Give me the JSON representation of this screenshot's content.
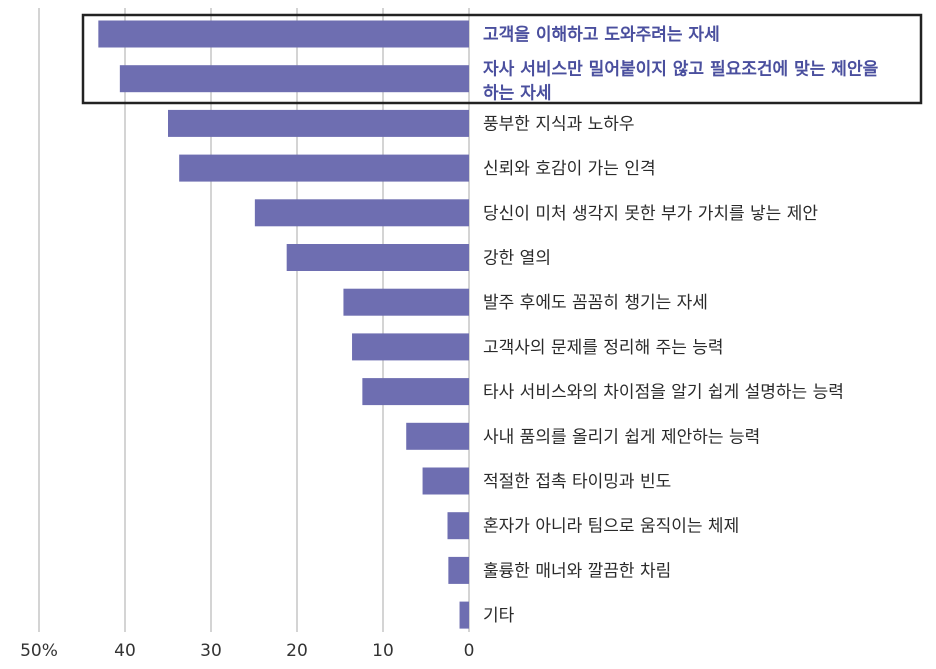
{
  "chart_data": {
    "type": "bar",
    "orientation": "horizontal",
    "direction": "leftward",
    "title": "",
    "xlabel": "",
    "ylabel": "",
    "xlim": [
      0,
      50
    ],
    "x_ticks": [
      50,
      40,
      30,
      20,
      10,
      0
    ],
    "x_tick_labels": [
      "50%",
      "40",
      "30",
      "20",
      "10",
      "0"
    ],
    "grid": "vertical",
    "bar_color": "#6e6eb1",
    "highlight_color": "#4a4f9e",
    "highlight_box": "categories 1-2",
    "categories": [
      "고객을 이해하고 도와주려는 자세",
      "자사 서비스만 밀어붙이지 않고 필요조건에 맞는 제안을 하는 자세",
      "풍부한 지식과 노하우",
      "신뢰와 호감이 가는 인격",
      "당신이 미처 생각지 못한 부가 가치를 낳는 제안",
      "강한 열의",
      "발주 후에도 꼼꼼히 챙기는 자세",
      "고객사의 문제를 정리해 주는 능력",
      "타사 서비스와의 차이점을 알기 쉽게 설명하는 능력",
      "사내 품의를 올리기 쉽게 제안하는 능력",
      "적절한 접촉 타이밍과 빈도",
      "혼자가 아니라 팀으로 움직이는 체제",
      "훌륭한 매너와 깔끔한 차림",
      "기타"
    ],
    "category_lines": [
      [
        "고객을 이해하고 도와주려는 자세"
      ],
      [
        "자사 서비스만 밀어붙이지 않고 필요조건에 맞는 제안을",
        "하는 자세"
      ],
      [
        "풍부한 지식과 노하우"
      ],
      [
        "신뢰와 호감이 가는 인격"
      ],
      [
        "당신이 미처 생각지 못한 부가 가치를 낳는 제안"
      ],
      [
        "강한 열의"
      ],
      [
        "발주 후에도 꼼꼼히 챙기는 자세"
      ],
      [
        "고객사의 문제를 정리해 주는 능력"
      ],
      [
        "타사 서비스와의 차이점을 알기 쉽게 설명하는 능력"
      ],
      [
        "사내 품의를 올리기 쉽게 제안하는 능력"
      ],
      [
        "적절한 접촉 타이밍과 빈도"
      ],
      [
        "혼자가 아니라 팀으로 움직이는 체제"
      ],
      [
        "훌륭한 매너와 깔끔한 차림"
      ],
      [
        "기타"
      ]
    ],
    "values": [
      43.1,
      40.6,
      35.0,
      33.7,
      24.9,
      21.2,
      14.6,
      13.6,
      12.4,
      7.3,
      5.4,
      2.5,
      2.4,
      1.1
    ]
  }
}
